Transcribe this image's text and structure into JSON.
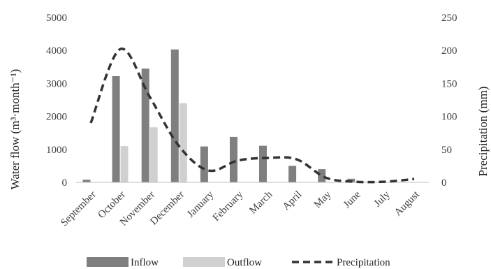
{
  "chart_data": {
    "type": "bar",
    "categories": [
      "September",
      "October",
      "November",
      "December",
      "January",
      "February",
      "March",
      "April",
      "May",
      "June",
      "July",
      "August"
    ],
    "series": [
      {
        "name": "Inflow",
        "type": "bar",
        "axis": "left",
        "color": "#7f7f7f",
        "values": [
          80,
          3220,
          3450,
          4030,
          1090,
          1380,
          1110,
          500,
          400,
          110,
          10,
          0
        ]
      },
      {
        "name": "Outflow",
        "type": "bar",
        "axis": "left",
        "color": "#d0d0d0",
        "values": [
          0,
          1100,
          1670,
          2400,
          0,
          0,
          0,
          0,
          0,
          0,
          0,
          0
        ]
      },
      {
        "name": "Precipitation",
        "type": "line",
        "style": "dashed",
        "axis": "right",
        "color": "#333333",
        "values": [
          90,
          202,
          130,
          55,
          18,
          33,
          37,
          35,
          7,
          1,
          1,
          5
        ]
      }
    ],
    "ylabel": "Water flow (m³·month⁻¹)",
    "y2label": "Precipitation (mm)",
    "ylim": [
      0,
      5000
    ],
    "y2lim": [
      0,
      250
    ],
    "yticks": [
      "0",
      "1000",
      "2000",
      "3000",
      "4000",
      "5000"
    ],
    "y2ticks": [
      "0",
      "50",
      "100",
      "150",
      "200",
      "250"
    ],
    "grid": false,
    "legend": "bottom"
  }
}
